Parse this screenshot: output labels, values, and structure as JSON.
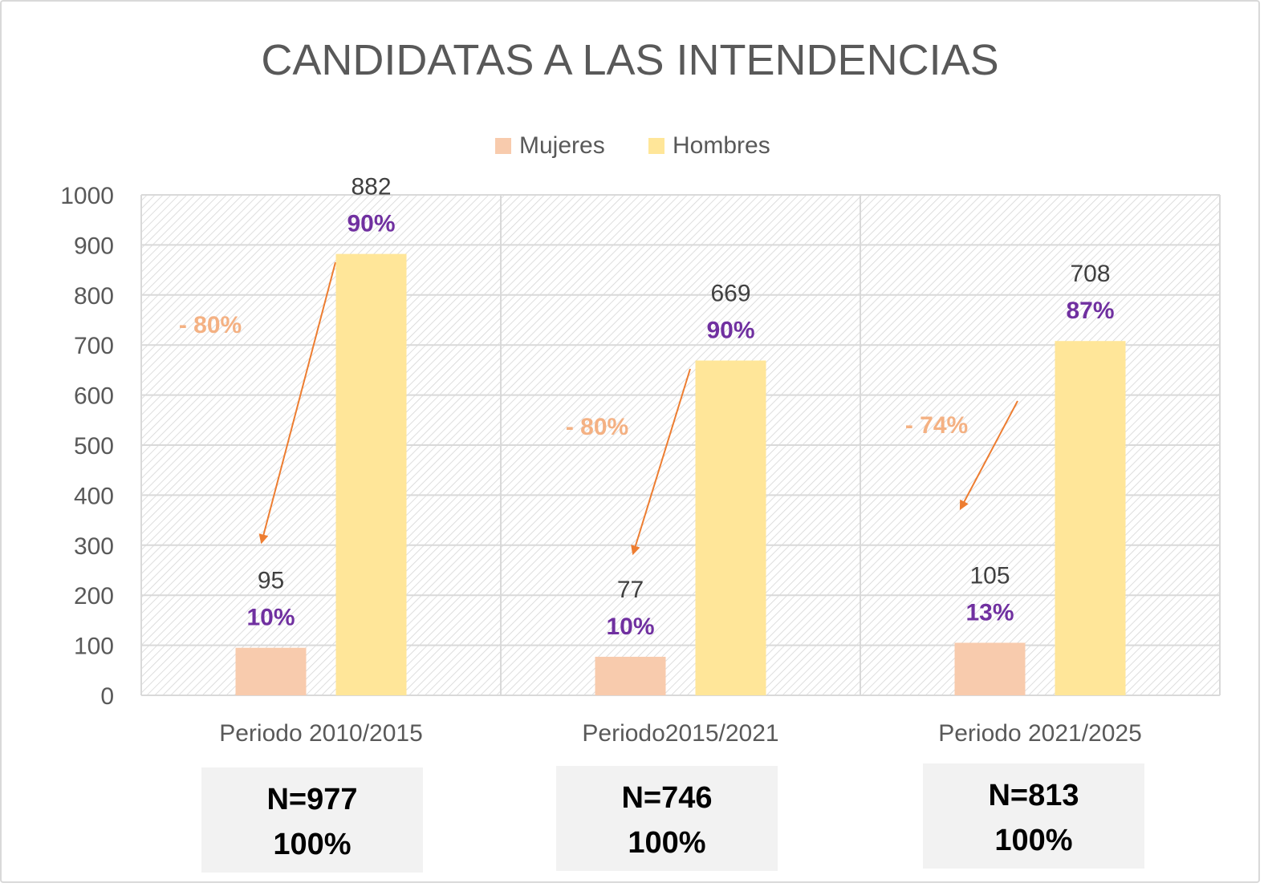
{
  "chart_data": {
    "type": "bar",
    "title": "CANDIDATAS A LAS INTENDENCIAS",
    "categories": [
      "Periodo 2010/2015",
      "Periodo2015/2021",
      "Periodo 2021/2025"
    ],
    "series": [
      {
        "name": "Mujeres",
        "values": [
          95,
          77,
          105
        ],
        "percent_labels": [
          "10%",
          "10%",
          "13%"
        ],
        "color": "#f8cbad"
      },
      {
        "name": "Hombres",
        "values": [
          882,
          669,
          708
        ],
        "percent_labels": [
          "90%",
          "90%",
          "87%"
        ],
        "color": "#ffe699"
      }
    ],
    "ylim": [
      0,
      1000
    ],
    "y_ticks": [
      0,
      100,
      200,
      300,
      400,
      500,
      600,
      700,
      800,
      900,
      1000
    ],
    "grid": true,
    "legend_position": "top-center",
    "gap_annotations": [
      "- 80%",
      "- 80%",
      "- 74%"
    ],
    "totals": [
      {
        "n": "N=977",
        "pct": "100%"
      },
      {
        "n": "N=746",
        "pct": "100%"
      },
      {
        "n": "N=813",
        "pct": "100%"
      }
    ],
    "colors": {
      "percent_label": "#7030a0",
      "annotation": "#f4b183",
      "arrow": "#ed7d31",
      "value_label": "#404040",
      "axis_text": "#595959",
      "grid": "#d9d9d9"
    }
  }
}
